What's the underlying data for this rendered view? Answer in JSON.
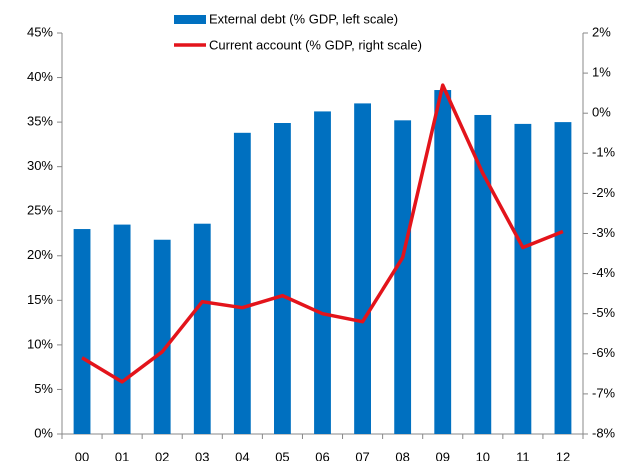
{
  "chart_data": {
    "type": "bar-line",
    "categories": [
      "00",
      "01",
      "02",
      "03",
      "04",
      "05",
      "06",
      "07",
      "08",
      "09",
      "10",
      "11",
      "12"
    ],
    "series": [
      {
        "name": "External debt (% GDP, left scale)",
        "color": "#0070c0",
        "type": "bar",
        "values": [
          23.0,
          23.5,
          21.8,
          23.6,
          33.8,
          34.9,
          36.2,
          37.1,
          35.2,
          38.6,
          35.8,
          34.8,
          35.0
        ]
      },
      {
        "name": "Current account (% GDP, right scale)",
        "color": "#e3141b",
        "type": "line",
        "axis": "y2",
        "values": [
          -6.1,
          -6.7,
          -5.95,
          -4.7,
          -4.85,
          -4.55,
          -5.0,
          -5.2,
          -3.6,
          0.7,
          -1.5,
          -3.35,
          -2.95
        ]
      }
    ],
    "ylim": [
      0,
      45
    ],
    "yticks": [
      {
        "value": 0,
        "label": "0%"
      },
      {
        "value": 5,
        "label": "5%"
      },
      {
        "value": 10,
        "label": "10%"
      },
      {
        "value": 15,
        "label": "15%"
      },
      {
        "value": 20,
        "label": "20%"
      },
      {
        "value": 25,
        "label": "25%"
      },
      {
        "value": 30,
        "label": "30%"
      },
      {
        "value": 35,
        "label": "35%"
      },
      {
        "value": 40,
        "label": "40%"
      },
      {
        "value": 45,
        "label": "45%"
      }
    ],
    "y2lim": [
      -8,
      2
    ],
    "y2ticks": [
      {
        "value": -8,
        "label": "-8%"
      },
      {
        "value": -7,
        "label": "-7%"
      },
      {
        "value": -6,
        "label": "-6%"
      },
      {
        "value": -5,
        "label": "-5%"
      },
      {
        "value": -4,
        "label": "-4%"
      },
      {
        "value": -3,
        "label": "-3%"
      },
      {
        "value": -2,
        "label": "-2%"
      },
      {
        "value": -1,
        "label": "-1%"
      },
      {
        "value": 0,
        "label": "0%"
      },
      {
        "value": 1,
        "label": "1%"
      },
      {
        "value": 2,
        "label": "2%"
      }
    ],
    "grid": false
  }
}
